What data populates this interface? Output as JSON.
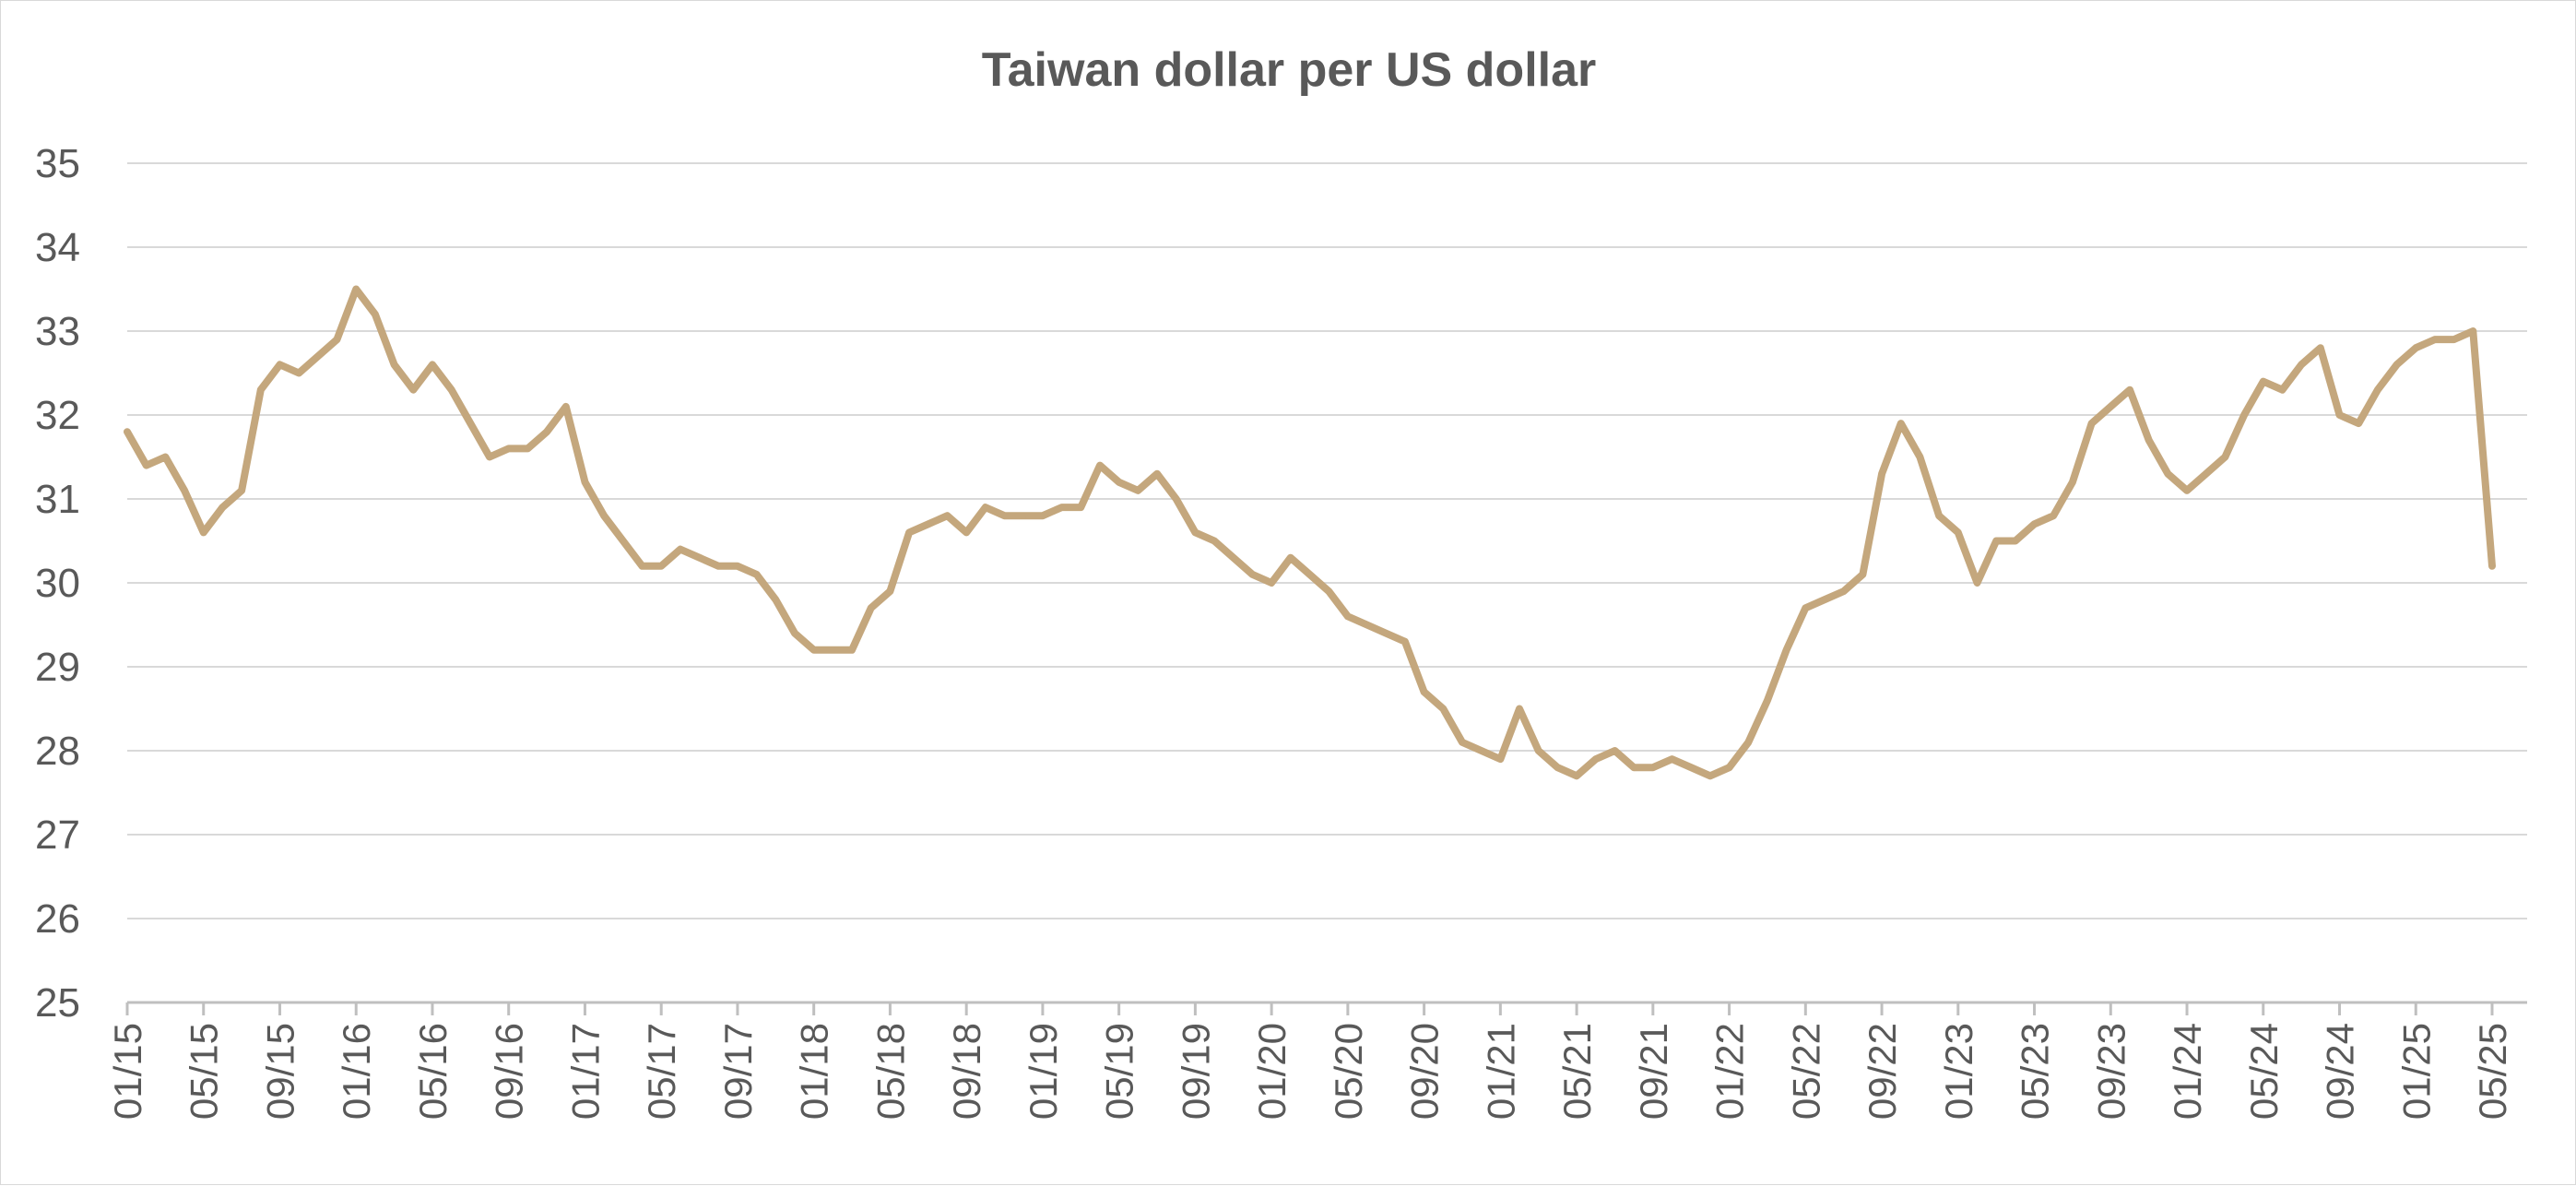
{
  "chart_data": {
    "type": "line",
    "title": "Taiwan dollar per US dollar",
    "xlabel": "",
    "ylabel": "",
    "ylim": [
      25,
      35
    ],
    "yticks": [
      25,
      26,
      27,
      28,
      29,
      30,
      31,
      32,
      33,
      34,
      35
    ],
    "grid": true,
    "legend": "none",
    "line_color": "#C4A77D",
    "xticks": [
      "01/15",
      "05/15",
      "09/15",
      "01/16",
      "05/16",
      "09/16",
      "01/17",
      "05/17",
      "09/17",
      "01/18",
      "05/18",
      "09/18",
      "01/19",
      "05/19",
      "09/19",
      "01/20",
      "05/20",
      "09/20",
      "01/21",
      "05/21",
      "09/21",
      "01/22",
      "05/22",
      "09/22",
      "01/23",
      "05/23",
      "09/23",
      "01/24",
      "05/24",
      "09/24",
      "01/25",
      "05/25"
    ],
    "series": [
      {
        "name": "",
        "x": [
          "2015-01",
          "2015-02",
          "2015-03",
          "2015-04",
          "2015-05",
          "2015-06",
          "2015-07",
          "2015-08",
          "2015-09",
          "2015-10",
          "2015-11",
          "2015-12",
          "2016-01",
          "2016-02",
          "2016-03",
          "2016-04",
          "2016-05",
          "2016-06",
          "2016-07",
          "2016-08",
          "2016-09",
          "2016-10",
          "2016-11",
          "2016-12",
          "2017-01",
          "2017-02",
          "2017-03",
          "2017-04",
          "2017-05",
          "2017-06",
          "2017-07",
          "2017-08",
          "2017-09",
          "2017-10",
          "2017-11",
          "2017-12",
          "2018-01",
          "2018-02",
          "2018-03",
          "2018-04",
          "2018-05",
          "2018-06",
          "2018-07",
          "2018-08",
          "2018-09",
          "2018-10",
          "2018-11",
          "2018-12",
          "2019-01",
          "2019-02",
          "2019-03",
          "2019-04",
          "2019-05",
          "2019-06",
          "2019-07",
          "2019-08",
          "2019-09",
          "2019-10",
          "2019-11",
          "2019-12",
          "2020-01",
          "2020-02",
          "2020-03",
          "2020-04",
          "2020-05",
          "2020-06",
          "2020-07",
          "2020-08",
          "2020-09",
          "2020-10",
          "2020-11",
          "2020-12",
          "2021-01",
          "2021-02",
          "2021-03",
          "2021-04",
          "2021-05",
          "2021-06",
          "2021-07",
          "2021-08",
          "2021-09",
          "2021-10",
          "2021-11",
          "2021-12",
          "2022-01",
          "2022-02",
          "2022-03",
          "2022-04",
          "2022-05",
          "2022-06",
          "2022-07",
          "2022-08",
          "2022-09",
          "2022-10",
          "2022-11",
          "2022-12",
          "2023-01",
          "2023-02",
          "2023-03",
          "2023-04",
          "2023-05",
          "2023-06",
          "2023-07",
          "2023-08",
          "2023-09",
          "2023-10",
          "2023-11",
          "2023-12",
          "2024-01",
          "2024-02",
          "2024-03",
          "2024-04",
          "2024-05",
          "2024-06",
          "2024-07",
          "2024-08",
          "2024-09",
          "2024-10",
          "2024-11",
          "2024-12",
          "2025-01",
          "2025-02",
          "2025-03",
          "2025-04",
          "2025-05"
        ],
        "values": [
          31.8,
          31.4,
          31.5,
          31.1,
          30.6,
          30.9,
          31.1,
          32.3,
          32.6,
          32.5,
          32.7,
          32.9,
          33.5,
          33.2,
          32.6,
          32.3,
          32.6,
          32.3,
          31.9,
          31.5,
          31.6,
          31.6,
          31.8,
          32.1,
          31.2,
          30.8,
          30.5,
          30.2,
          30.2,
          30.4,
          30.3,
          30.2,
          30.2,
          30.1,
          29.8,
          29.4,
          29.2,
          29.2,
          29.2,
          29.7,
          29.9,
          30.6,
          30.7,
          30.8,
          30.6,
          30.9,
          30.8,
          30.8,
          30.8,
          30.9,
          30.9,
          31.4,
          31.2,
          31.1,
          31.3,
          31.0,
          30.6,
          30.5,
          30.3,
          30.1,
          30.0,
          30.3,
          30.1,
          29.9,
          29.6,
          29.5,
          29.4,
          29.3,
          28.7,
          28.5,
          28.1,
          28.0,
          27.9,
          28.5,
          28.0,
          27.8,
          27.7,
          27.9,
          28.0,
          27.8,
          27.8,
          27.9,
          27.8,
          27.7,
          27.8,
          28.1,
          28.6,
          29.2,
          29.7,
          29.8,
          29.9,
          30.1,
          31.3,
          31.9,
          31.5,
          30.8,
          30.6,
          30.0,
          30.5,
          30.5,
          30.7,
          30.8,
          31.2,
          31.9,
          32.1,
          32.3,
          31.7,
          31.3,
          31.1,
          31.3,
          31.5,
          32.0,
          32.4,
          32.3,
          32.6,
          32.8,
          32.0,
          31.9,
          32.3,
          32.6,
          32.8,
          32.9,
          32.9,
          33.0,
          30.2
        ]
      }
    ]
  }
}
